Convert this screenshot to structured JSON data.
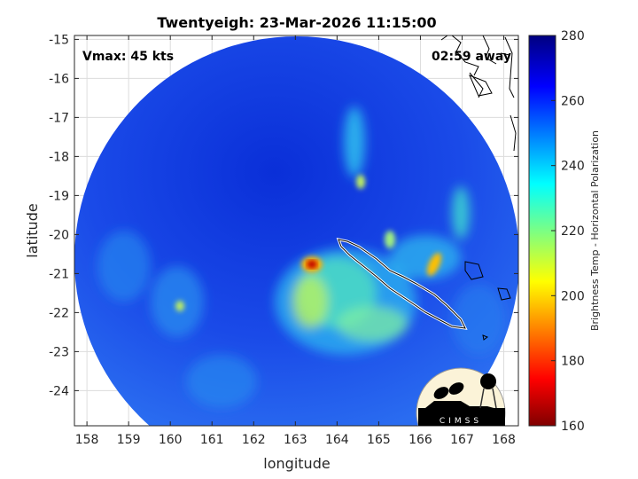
{
  "chart_data": {
    "type": "heatmap",
    "title": "Twentyeigh: 23-Mar-2026 11:15:00",
    "xlabel": "longitude",
    "ylabel": "latitude",
    "xlim": [
      157.7,
      168.35
    ],
    "ylim": [
      -24.9,
      -14.9
    ],
    "xticks": [
      158,
      159,
      160,
      161,
      162,
      163,
      164,
      165,
      166,
      167,
      168
    ],
    "yticks": [
      -15,
      -16,
      -17,
      -18,
      -19,
      -20,
      -21,
      -22,
      -23,
      -24
    ],
    "grid": true,
    "annotations": {
      "vmax": "Vmax: 45 kts",
      "time_away": "02:59 away"
    },
    "colorbar": {
      "label": "Brightness Temp - Horizontal Polarization",
      "clim": [
        160,
        280
      ],
      "ticks": [
        160,
        180,
        200,
        220,
        240,
        260,
        280
      ],
      "colormap": [
        "#800000",
        "#ff0000",
        "#ffff00",
        "#00ffff",
        "#0000ff",
        "#000080"
      ]
    },
    "logo": "CIMSS"
  }
}
